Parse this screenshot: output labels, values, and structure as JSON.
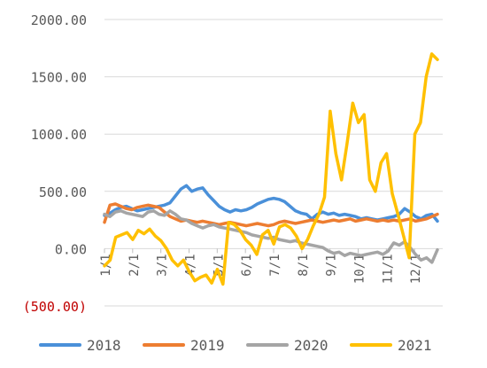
{
  "chart_data": {
    "type": "line",
    "title": "",
    "xlabel": "",
    "ylabel": "",
    "ylim": [
      -500,
      2000
    ],
    "y_ticks": [
      {
        "value": 2000,
        "label": "2000.00",
        "color": "#595959"
      },
      {
        "value": 1500,
        "label": "1500.00",
        "color": "#595959"
      },
      {
        "value": 1000,
        "label": "1000.00",
        "color": "#595959"
      },
      {
        "value": 500,
        "label": "500.00",
        "color": "#595959"
      },
      {
        "value": 0,
        "label": "0.00",
        "color": "#595959"
      },
      {
        "value": -500,
        "label": "(500.00)",
        "color": "#c00000"
      }
    ],
    "x_ticks": [
      "1/1",
      "2/1",
      "3/1",
      "4/1",
      "5/1",
      "6/1",
      "7/1",
      "8/1",
      "9/1",
      "10/1",
      "11/1",
      "12/1"
    ],
    "grid": true,
    "legend_position": "bottom",
    "series": [
      {
        "name": "2018",
        "color": "#4a90d9",
        "values": [
          290,
          310,
          340,
          360,
          370,
          350,
          330,
          340,
          350,
          360,
          370,
          380,
          400,
          460,
          520,
          550,
          500,
          520,
          530,
          470,
          420,
          370,
          340,
          320,
          340,
          330,
          340,
          360,
          390,
          410,
          430,
          440,
          430,
          410,
          370,
          330,
          310,
          300,
          260,
          300,
          320,
          300,
          310,
          290,
          300,
          290,
          280,
          260,
          270,
          260,
          250,
          260,
          270,
          280,
          300,
          350,
          320,
          280,
          260,
          290,
          300,
          240
        ]
      },
      {
        "name": "2019",
        "color": "#ed7d31",
        "values": [
          230,
          380,
          390,
          370,
          350,
          340,
          360,
          370,
          380,
          370,
          360,
          320,
          280,
          260,
          240,
          250,
          240,
          230,
          240,
          230,
          220,
          210,
          220,
          230,
          220,
          210,
          200,
          210,
          220,
          210,
          200,
          210,
          230,
          240,
          230,
          220,
          230,
          240,
          250,
          240,
          230,
          240,
          250,
          240,
          250,
          260,
          240,
          250,
          260,
          250,
          240,
          250,
          240,
          250,
          240,
          250,
          260,
          240,
          250,
          260,
          280,
          300
        ]
      },
      {
        "name": "2020",
        "color": "#a5a5a5",
        "values": [
          300,
          280,
          320,
          330,
          310,
          300,
          290,
          280,
          320,
          330,
          300,
          290,
          330,
          300,
          260,
          250,
          220,
          200,
          180,
          200,
          210,
          190,
          180,
          170,
          160,
          150,
          140,
          120,
          110,
          100,
          90,
          100,
          80,
          70,
          60,
          70,
          50,
          40,
          30,
          20,
          10,
          -20,
          -40,
          -30,
          -60,
          -40,
          -50,
          -60,
          -50,
          -40,
          -30,
          -50,
          -20,
          50,
          30,
          60,
          10,
          -50,
          -100,
          -80,
          -120,
          -10
        ]
      },
      {
        "name": "2021",
        "color": "#ffc000",
        "values": [
          -150,
          -100,
          100,
          120,
          140,
          80,
          160,
          130,
          170,
          110,
          70,
          0,
          -100,
          -150,
          -100,
          -200,
          -280,
          -250,
          -230,
          -300,
          -180,
          -310,
          230,
          210,
          160,
          80,
          30,
          -50,
          120,
          160,
          40,
          190,
          210,
          180,
          110,
          0,
          80,
          200,
          300,
          450,
          1200,
          830,
          600,
          920,
          1270,
          1100,
          1170,
          600,
          500,
          750,
          830,
          480,
          300,
          110,
          -80,
          1000,
          1100,
          1500,
          1700,
          1650
        ]
      }
    ]
  }
}
